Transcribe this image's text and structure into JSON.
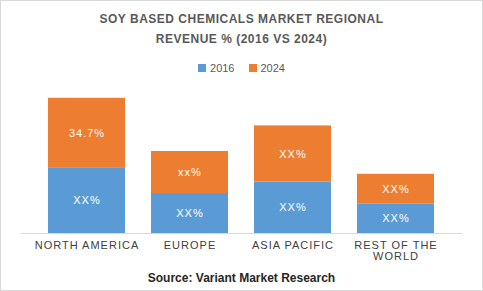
{
  "chart_data": {
    "type": "bar",
    "title": "SOY BASED CHEMICALS MARKET REGIONAL REVENUE % (2016 VS 2024)",
    "caption": "Source: Variant Market Research",
    "categories": [
      "NORTH AMERICA",
      "EUROPE",
      "ASIA PACIFIC",
      "REST OF THE WORLD"
    ],
    "series": [
      {
        "name": "2016",
        "color": "#5b9bd5",
        "values": [
          32.9,
          20.0,
          25.7,
          14.8
        ],
        "value_labels": [
          "XX%",
          "XX%",
          "XX%",
          "XX%"
        ]
      },
      {
        "name": "2024",
        "color": "#ed7d31",
        "values": [
          34.7,
          21.0,
          28.1,
          14.8
        ],
        "value_labels": [
          "34.7%",
          "xx%",
          "XX%",
          "XX%"
        ]
      }
    ],
    "ylim": [
      0,
      73
    ],
    "stacked": true,
    "data_labels": true,
    "legend": "top",
    "tick_labels": "x",
    "grid": false
  }
}
